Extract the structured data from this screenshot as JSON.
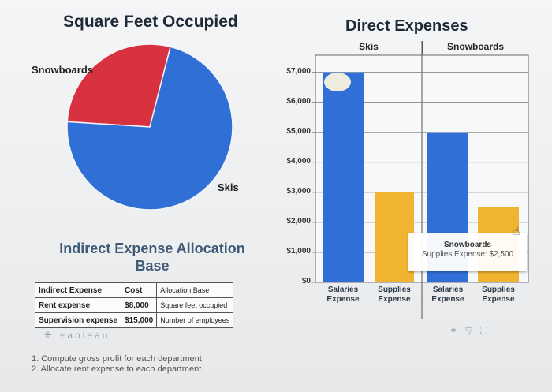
{
  "pie": {
    "title": "Square Feet Occupied",
    "label_snowboards": "Snowboards",
    "label_skis": "Skis"
  },
  "bars": {
    "title": "Direct Expenses",
    "header_skis": "Skis",
    "header_snowboards": "Snowboards",
    "x_labels": [
      [
        "Salaries",
        "Expense"
      ],
      [
        "Supplies",
        "Expense"
      ],
      [
        "Salaries",
        "Expense"
      ],
      [
        "Supplies",
        "Expense"
      ]
    ],
    "tooltip_title": "Snowboards",
    "tooltip_text": "Supplies Expense: $2,500"
  },
  "allocation": {
    "title_line1": "Indirect Expense Allocation",
    "title_line2": "Base",
    "headers": [
      "Indirect Expense",
      "Cost",
      "Allocation Base"
    ],
    "rows": [
      [
        "Rent expense",
        "$8,000",
        "Square feet occupied"
      ],
      [
        "Supervision expense",
        "$15,000",
        "Number of employees"
      ]
    ]
  },
  "branding": "+ableau",
  "tasks": [
    "1. Compute gross profit for each department.",
    "2. Allocate rent expense to each department."
  ],
  "chart_data": [
    {
      "type": "pie",
      "title": "Square Feet Occupied",
      "slices": [
        {
          "label": "Snowboards",
          "value": 28,
          "color": "#d8313f"
        },
        {
          "label": "Skis",
          "value": 72,
          "color": "#2f6fd6"
        }
      ]
    },
    {
      "type": "bar",
      "title": "Direct Expenses",
      "groups": [
        "Skis",
        "Snowboards"
      ],
      "categories": [
        "Salaries Expense",
        "Supplies Expense",
        "Salaries Expense",
        "Supplies Expense"
      ],
      "values": [
        7000,
        3000,
        5000,
        2500
      ],
      "colors": [
        "#2f6fd6",
        "#f0b431",
        "#2f6fd6",
        "#f0b431"
      ],
      "yticks": [
        "$7,000",
        "$6,000",
        "$5,000",
        "$4,000",
        "$3,000",
        "$2,000",
        "$1,000",
        "$0"
      ],
      "ylim": [
        0,
        7200
      ],
      "grid": true
    }
  ]
}
